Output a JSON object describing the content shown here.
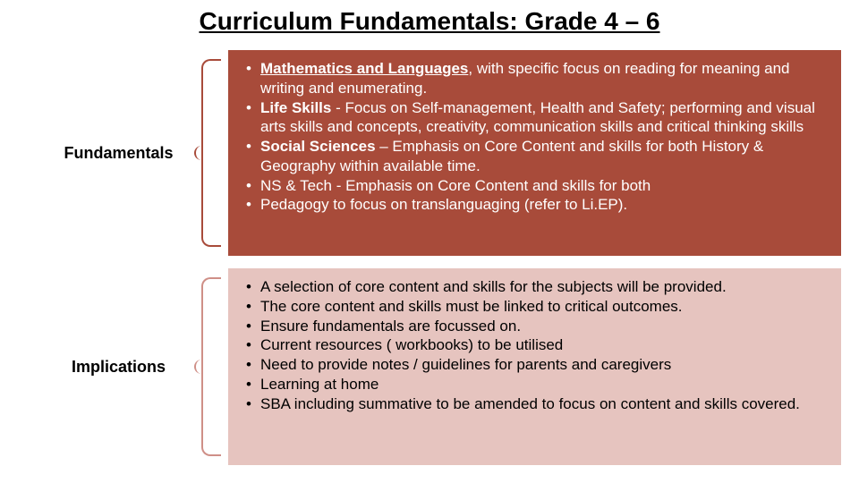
{
  "title": "Curriculum Fundamentals: Grade 4 – 6",
  "sections": [
    {
      "label": "Fundamentals",
      "box_bg": "#a84b3a",
      "box_fg": "#ffffff",
      "bracket_color": "#a84b3a",
      "bullets": [
        {
          "lead_bold_ul": "Mathematics and Languages",
          "rest": ", with specific focus on reading for meaning and writing and enumerating."
        },
        {
          "lead_bold": "Life Skills",
          "rest": "  - Focus on Self-management, Health and Safety; performing and visual arts skills and concepts, creativity, communication skills and critical thinking skills"
        },
        {
          "lead_bold": "Social Sciences",
          "rest": " – Emphasis on Core Content and skills for both History & Geography within available time."
        },
        {
          "plain": "NS & Tech - Emphasis on Core Content and skills for both"
        },
        {
          "plain": "Pedagogy to focus on translanguaging (refer to Li.EP)."
        }
      ]
    },
    {
      "label": "Implications",
      "box_bg": "#e6c4bf",
      "box_fg": "#000000",
      "bracket_color": "#cf8f87",
      "bullets": [
        {
          "plain": "A selection of core content and skills for the subjects will be provided."
        },
        {
          "plain": "The core content and skills must be linked to critical outcomes."
        },
        {
          "plain": "Ensure fundamentals are focussed on."
        },
        {
          "plain": "Current resources ( workbooks) to be utilised"
        },
        {
          "plain": "Need to provide notes / guidelines for parents and caregivers"
        },
        {
          "plain": "Learning at home"
        },
        {
          "plain": "SBA including summative to be amended to focus on content and skills covered."
        }
      ]
    }
  ]
}
